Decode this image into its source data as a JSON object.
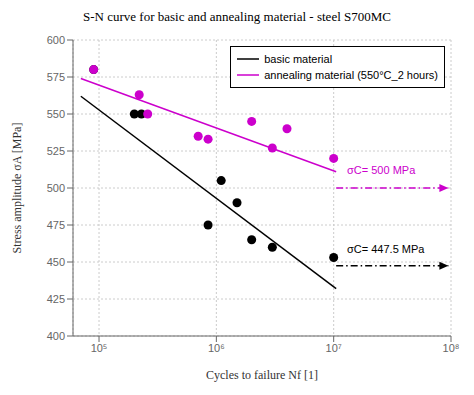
{
  "chart_data": {
    "type": "scatter",
    "title": "S-N curve for basic and annealing material - steel S700MC",
    "xlabel": "Cycles to failure Nf [1]",
    "ylabel": "Stress amplitude σA [MPa]",
    "log": "x",
    "grid": true,
    "legend": "upper right",
    "xlim": [
      60000,
      100000000
    ],
    "xticks": [
      {
        "value": 100000,
        "label": "10⁵"
      },
      {
        "value": 1000000,
        "label": "10⁶"
      },
      {
        "value": 10000000,
        "label": "10⁷"
      },
      {
        "value": 100000000,
        "label": "10⁸"
      }
    ],
    "ylim": [
      400,
      600
    ],
    "yticks": [
      400,
      425,
      450,
      475,
      500,
      525,
      550,
      575,
      600
    ],
    "series": [
      {
        "name": "basic material",
        "type": "line",
        "line_style": "solid",
        "color": "#000000",
        "x": [
          70000,
          10500000
        ],
        "values": [
          562,
          432
        ]
      },
      {
        "name": "annealing material (550°C_2 hours)",
        "type": "line",
        "line_style": "solid",
        "color": "#cc00cc",
        "x": [
          70000,
          10500000
        ],
        "values": [
          574,
          511
        ]
      },
      {
        "type": "scatter",
        "marker": "circle",
        "color": "#000000",
        "x": [
          90000,
          200000,
          230000,
          850000,
          1100000,
          1500000,
          2000000,
          3000000,
          10000000
        ],
        "values": [
          580,
          550,
          550,
          475,
          505,
          490,
          465,
          460,
          453
        ]
      },
      {
        "type": "scatter",
        "marker": "circle",
        "color": "#cc00cc",
        "x": [
          90000,
          220000,
          260000,
          700000,
          850000,
          2000000,
          3000000,
          4000000,
          10000000
        ],
        "values": [
          580,
          563,
          550,
          535,
          533,
          545,
          527,
          540,
          520
        ]
      },
      {
        "type": "line",
        "line_style": "dashdot",
        "marker": "arrow",
        "color": "#000000",
        "x": [
          10500000,
          95000000
        ],
        "values": [
          447.5,
          447.5
        ]
      },
      {
        "type": "line",
        "line_style": "dashdot",
        "marker": "arrow",
        "color": "#cc00cc",
        "x": [
          10500000,
          95000000
        ],
        "values": [
          500,
          500
        ]
      }
    ],
    "annotations": [
      {
        "text": "σC= 447.5 MPa",
        "x": 13000000,
        "y": 455,
        "color": "#000000"
      },
      {
        "text": "σC= 500 MPa",
        "x": 13000000,
        "y": 508,
        "color": "#cc00cc"
      }
    ]
  }
}
